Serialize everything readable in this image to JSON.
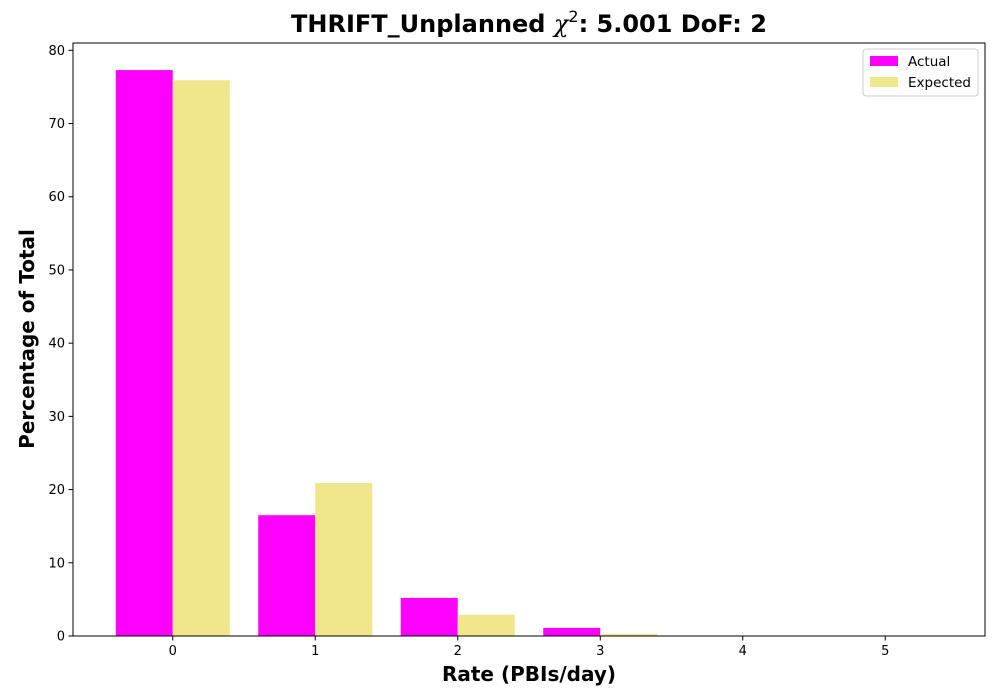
{
  "chart_data": {
    "type": "bar",
    "title": {
      "main": "THRIFT_Unplanned ",
      "symbol": "χ",
      "superscript": "2",
      "rest": ": 5.001 DoF: 2"
    },
    "xlabel": "Rate (PBIs/day)",
    "ylabel": "Percentage of Total",
    "x": [
      0,
      1,
      2,
      3,
      4,
      5
    ],
    "x_tick_labels": [
      "0",
      "1",
      "2",
      "3",
      "4",
      "5"
    ],
    "xlim": [
      -0.7,
      5.7
    ],
    "ylim": [
      0,
      81
    ],
    "y_ticks": [
      0,
      10,
      20,
      30,
      40,
      50,
      60,
      70,
      80
    ],
    "y_tick_labels": [
      "0",
      "10",
      "20",
      "30",
      "40",
      "50",
      "60",
      "70",
      "80"
    ],
    "grid": false,
    "legend_position": "top-right",
    "series": [
      {
        "name": "Actual",
        "color": "#ff00ff",
        "values": [
          77.3,
          16.5,
          5.2,
          1.1,
          0.0,
          0.0
        ]
      },
      {
        "name": "Expected",
        "color": "#f0e68c",
        "values": [
          75.9,
          20.9,
          2.9,
          0.3,
          0.0,
          0.0
        ]
      }
    ]
  }
}
